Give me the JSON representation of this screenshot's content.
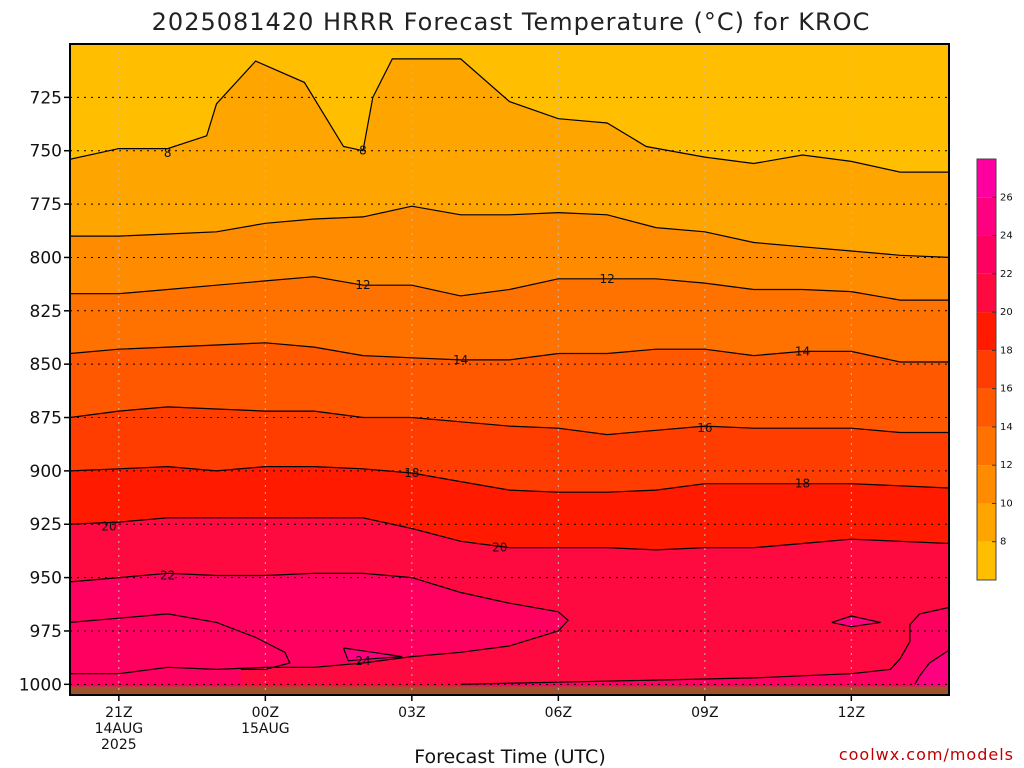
{
  "chart_data": {
    "type": "heatmap",
    "title": "2025081420 HRRR Forecast Temperature (°C) for KROC",
    "xlabel": "Forecast Time (UTC)",
    "ylabel": "",
    "credit": "coolwx.com/models",
    "x_ticks": [
      {
        "t": 1,
        "line1": "21Z",
        "line2": "14AUG",
        "line3": "2025"
      },
      {
        "t": 4,
        "line1": "00Z",
        "line2": "15AUG",
        "line3": ""
      },
      {
        "t": 7,
        "line1": "03Z",
        "line2": "",
        "line3": ""
      },
      {
        "t": 10,
        "line1": "06Z",
        "line2": "",
        "line3": ""
      },
      {
        "t": 13,
        "line1": "09Z",
        "line2": "",
        "line3": ""
      },
      {
        "t": 16,
        "line1": "12Z",
        "line2": "",
        "line3": ""
      }
    ],
    "xlim": [
      0,
      18
    ],
    "y_ticks": [
      725,
      750,
      775,
      800,
      825,
      850,
      875,
      900,
      925,
      950,
      975,
      1000
    ],
    "ylim_hPa": [
      1005,
      700
    ],
    "grid": true,
    "colorbar": {
      "ticks": [
        8,
        10,
        12,
        14,
        16,
        18,
        20,
        22,
        24,
        26
      ],
      "range": [
        6,
        28
      ],
      "levels": [
        {
          "min": 6,
          "max": 8,
          "color": "#FFBF00"
        },
        {
          "min": 8,
          "max": 10,
          "color": "#FFA500"
        },
        {
          "min": 10,
          "max": 12,
          "color": "#FF8C00"
        },
        {
          "min": 12,
          "max": 14,
          "color": "#FF7200"
        },
        {
          "min": 14,
          "max": 16,
          "color": "#FF5800"
        },
        {
          "min": 16,
          "max": 18,
          "color": "#FF3D00"
        },
        {
          "min": 18,
          "max": 20,
          "color": "#FF1A00"
        },
        {
          "min": 20,
          "max": 22,
          "color": "#FF0A40"
        },
        {
          "min": 22,
          "max": 24,
          "color": "#FF0060"
        },
        {
          "min": 24,
          "max": 26,
          "color": "#FF0080"
        },
        {
          "min": 26,
          "max": 28,
          "color": "#FF00A0"
        }
      ]
    },
    "isotherms": [
      {
        "value": 8,
        "labels": [
          {
            "t": 2.0,
            "p": 751
          },
          {
            "t": 6.0,
            "p": 750
          }
        ],
        "points": [
          [
            0,
            754
          ],
          [
            1,
            749
          ],
          [
            2,
            749
          ],
          [
            2.8,
            743
          ],
          [
            3,
            728
          ],
          [
            3.8,
            708
          ],
          [
            4.8,
            718
          ],
          [
            5.6,
            748
          ],
          [
            6.0,
            750
          ],
          [
            6.2,
            725
          ],
          [
            6.6,
            707
          ],
          [
            8,
            707
          ],
          [
            9,
            727
          ],
          [
            10,
            735
          ],
          [
            11,
            737
          ],
          [
            11.8,
            748
          ],
          [
            13,
            753
          ],
          [
            14,
            756
          ],
          [
            15,
            752
          ],
          [
            16,
            755
          ],
          [
            17,
            760
          ],
          [
            18,
            760
          ]
        ]
      },
      {
        "value": 10,
        "labels": [],
        "points": [
          [
            0,
            790
          ],
          [
            1,
            790
          ],
          [
            2,
            789
          ],
          [
            3,
            788
          ],
          [
            4,
            784
          ],
          [
            5,
            782
          ],
          [
            6,
            781
          ],
          [
            7,
            776
          ],
          [
            8,
            780
          ],
          [
            9,
            780
          ],
          [
            10,
            779
          ],
          [
            11,
            780
          ],
          [
            12,
            786
          ],
          [
            13,
            788
          ],
          [
            14,
            793
          ],
          [
            15,
            795
          ],
          [
            16,
            797
          ],
          [
            17,
            799
          ],
          [
            18,
            800
          ]
        ]
      },
      {
        "value": 12,
        "labels": [
          {
            "t": 6.0,
            "p": 813
          },
          {
            "t": 11.0,
            "p": 810
          }
        ],
        "points": [
          [
            0,
            817
          ],
          [
            1,
            817
          ],
          [
            2,
            815
          ],
          [
            3,
            813
          ],
          [
            4,
            811
          ],
          [
            5,
            809
          ],
          [
            6,
            813
          ],
          [
            7,
            813
          ],
          [
            8,
            818
          ],
          [
            9,
            815
          ],
          [
            10,
            810
          ],
          [
            11,
            810
          ],
          [
            12,
            810
          ],
          [
            13,
            812
          ],
          [
            14,
            815
          ],
          [
            15,
            815
          ],
          [
            16,
            816
          ],
          [
            17,
            820
          ],
          [
            18,
            820
          ]
        ]
      },
      {
        "value": 14,
        "labels": [
          {
            "t": 8.0,
            "p": 848
          },
          {
            "t": 15.0,
            "p": 844
          }
        ],
        "points": [
          [
            0,
            845
          ],
          [
            1,
            843
          ],
          [
            2,
            842
          ],
          [
            3,
            841
          ],
          [
            4,
            840
          ],
          [
            5,
            842
          ],
          [
            6,
            846
          ],
          [
            7,
            847
          ],
          [
            8,
            848
          ],
          [
            9,
            848
          ],
          [
            10,
            845
          ],
          [
            11,
            845
          ],
          [
            12,
            843
          ],
          [
            13,
            843
          ],
          [
            14,
            846
          ],
          [
            15,
            844
          ],
          [
            16,
            844
          ],
          [
            17,
            849
          ],
          [
            18,
            849
          ]
        ]
      },
      {
        "value": 16,
        "labels": [
          {
            "t": 13.0,
            "p": 880
          }
        ],
        "points": [
          [
            0,
            875
          ],
          [
            1,
            872
          ],
          [
            2,
            870
          ],
          [
            3,
            871
          ],
          [
            4,
            872
          ],
          [
            5,
            872
          ],
          [
            6,
            875
          ],
          [
            7,
            875
          ],
          [
            8,
            877
          ],
          [
            9,
            879
          ],
          [
            10,
            880
          ],
          [
            11,
            883
          ],
          [
            12,
            881
          ],
          [
            13,
            879
          ],
          [
            14,
            880
          ],
          [
            15,
            880
          ],
          [
            16,
            880
          ],
          [
            17,
            882
          ],
          [
            18,
            882
          ]
        ]
      },
      {
        "value": 18,
        "labels": [
          {
            "t": 7.0,
            "p": 901
          },
          {
            "t": 15.0,
            "p": 906
          }
        ],
        "points": [
          [
            0,
            900
          ],
          [
            1,
            899
          ],
          [
            2,
            898
          ],
          [
            3,
            900
          ],
          [
            4,
            898
          ],
          [
            5,
            898
          ],
          [
            6,
            899
          ],
          [
            7,
            901
          ],
          [
            8,
            905
          ],
          [
            9,
            909
          ],
          [
            10,
            910
          ],
          [
            11,
            910
          ],
          [
            12,
            909
          ],
          [
            13,
            906
          ],
          [
            14,
            906
          ],
          [
            15,
            906
          ],
          [
            16,
            906
          ],
          [
            17,
            907
          ],
          [
            18,
            908
          ]
        ]
      },
      {
        "value": 20,
        "labels": [
          {
            "t": 0.8,
            "p": 926
          },
          {
            "t": 8.8,
            "p": 936
          }
        ],
        "points": [
          [
            0,
            925
          ],
          [
            1,
            924
          ],
          [
            2,
            922
          ],
          [
            3,
            922
          ],
          [
            4,
            922
          ],
          [
            5,
            922
          ],
          [
            6,
            922
          ],
          [
            7,
            927
          ],
          [
            8,
            933
          ],
          [
            9,
            936
          ],
          [
            10,
            936
          ],
          [
            11,
            936
          ],
          [
            12,
            937
          ],
          [
            13,
            936
          ],
          [
            14,
            936
          ],
          [
            15,
            934
          ],
          [
            16,
            932
          ],
          [
            17,
            933
          ],
          [
            18,
            934
          ]
        ]
      },
      {
        "value": 22,
        "labels": [
          {
            "t": 2.0,
            "p": 949
          }
        ],
        "points": [
          [
            0,
            952
          ],
          [
            1,
            950
          ],
          [
            2,
            948
          ],
          [
            3,
            949
          ],
          [
            4,
            949
          ],
          [
            5,
            948
          ],
          [
            6,
            948
          ],
          [
            7,
            950
          ],
          [
            8,
            957
          ],
          [
            9,
            962
          ],
          [
            10,
            966
          ],
          [
            10.2,
            970
          ],
          [
            10,
            975
          ],
          [
            9,
            982
          ],
          [
            8,
            985
          ],
          [
            7,
            987
          ],
          [
            6,
            990
          ],
          [
            5,
            992
          ],
          [
            4,
            992
          ],
          [
            3,
            993
          ],
          [
            2,
            992
          ],
          [
            1,
            995
          ],
          [
            0,
            995
          ]
        ]
      },
      {
        "value": 22,
        "labels": [],
        "points": [
          [
            0,
            971
          ],
          [
            1,
            969
          ],
          [
            2,
            967
          ],
          [
            3,
            971
          ],
          [
            3.8,
            978
          ],
          [
            4.4,
            985
          ],
          [
            4.5,
            990
          ],
          [
            4.0,
            993
          ],
          [
            3.5,
            993
          ]
        ]
      },
      {
        "value": 22,
        "labels": [],
        "points": [
          [
            18,
            964
          ],
          [
            17.4,
            967
          ],
          [
            17.2,
            972
          ],
          [
            17.2,
            980
          ],
          [
            17.0,
            988
          ],
          [
            16.8,
            993
          ],
          [
            16,
            995
          ],
          [
            14,
            997
          ],
          [
            12,
            998
          ],
          [
            10,
            999
          ],
          [
            8,
            1000
          ]
        ]
      },
      {
        "value": 24,
        "labels": [
          {
            "t": 6.0,
            "p": 989
          }
        ],
        "points": [
          [
            5.6,
            983
          ],
          [
            5.7,
            989
          ],
          [
            6.2,
            988
          ],
          [
            6.8,
            987
          ],
          [
            6.2,
            985
          ],
          [
            5.6,
            983
          ]
        ]
      },
      {
        "value": 24,
        "labels": [],
        "points": [
          [
            15.6,
            971
          ],
          [
            16,
            973
          ],
          [
            16.6,
            971
          ],
          [
            16,
            968
          ],
          [
            15.6,
            971
          ]
        ]
      },
      {
        "value": 24,
        "labels": [],
        "points": [
          [
            18,
            984
          ],
          [
            17.6,
            990
          ],
          [
            17.4,
            996
          ],
          [
            17.3,
            1000
          ]
        ]
      }
    ]
  }
}
